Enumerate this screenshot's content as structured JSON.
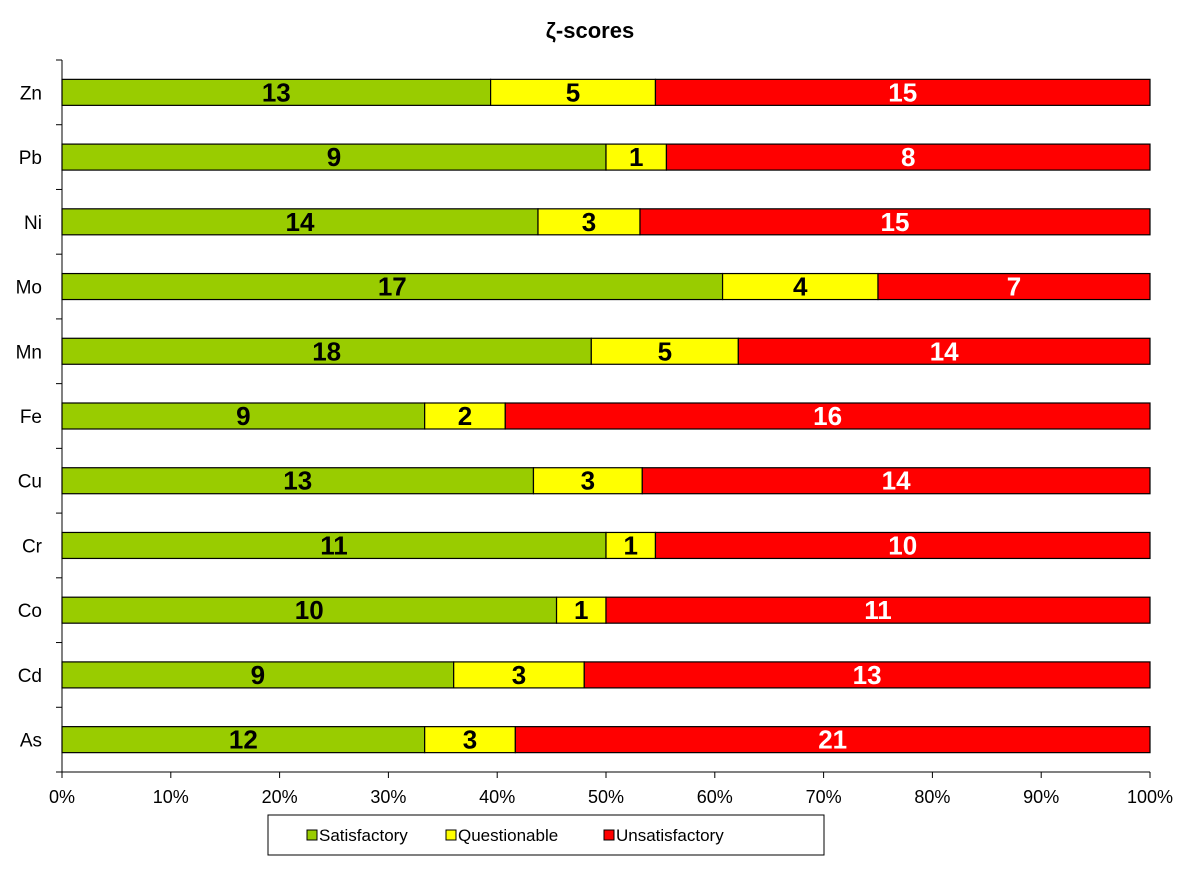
{
  "chart_data": {
    "type": "bar",
    "orientation": "horizontal",
    "stacked": "percent",
    "title": "ζ-scores",
    "categories": [
      "Zn",
      "Pb",
      "Ni",
      "Mo",
      "Mn",
      "Fe",
      "Cu",
      "Cr",
      "Co",
      "Cd",
      "As"
    ],
    "series": [
      {
        "name": "Satisfactory",
        "color": "#99cc00",
        "label_color": "#000000",
        "values": [
          13,
          9,
          14,
          17,
          18,
          9,
          13,
          11,
          10,
          9,
          12
        ]
      },
      {
        "name": "Questionable",
        "color": "#ffff00",
        "label_color": "#000000",
        "values": [
          5,
          1,
          3,
          4,
          5,
          2,
          3,
          1,
          1,
          3,
          3
        ]
      },
      {
        "name": "Unsatisfactory",
        "color": "#ff0000",
        "label_color": "#ffffff",
        "values": [
          15,
          8,
          15,
          7,
          14,
          16,
          14,
          10,
          11,
          13,
          21
        ]
      }
    ],
    "x_ticks": [
      "0%",
      "10%",
      "20%",
      "30%",
      "40%",
      "50%",
      "60%",
      "70%",
      "80%",
      "90%",
      "100%"
    ],
    "xlim": [
      0,
      100
    ],
    "grid": false,
    "legend_position": "bottom",
    "xlabel": "",
    "ylabel": ""
  }
}
